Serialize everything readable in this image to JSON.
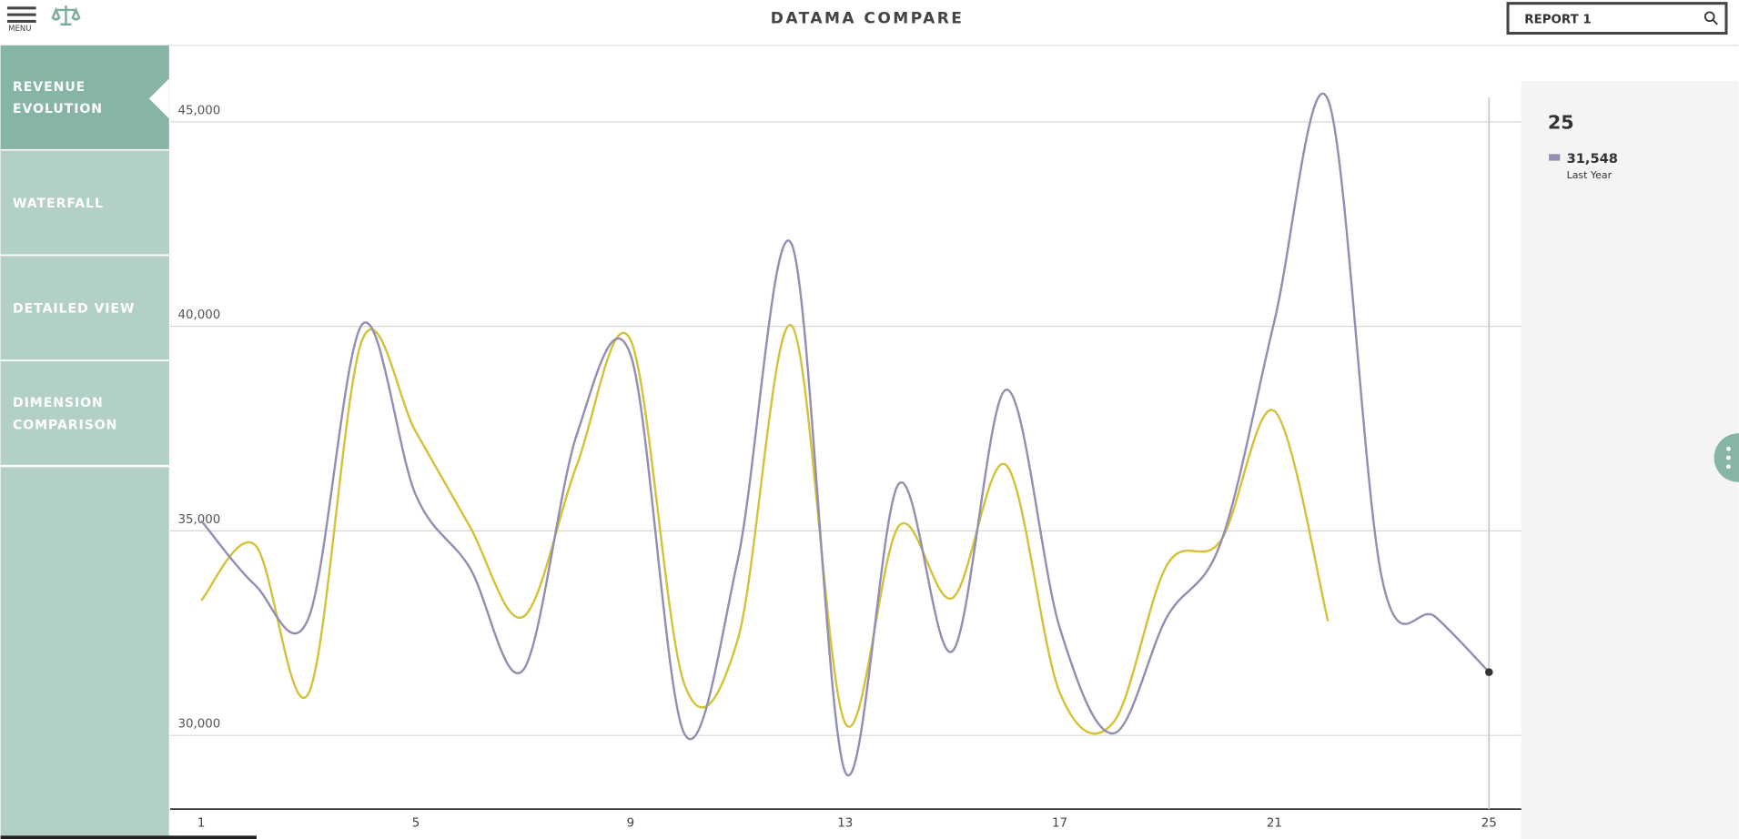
{
  "header": {
    "menu": "MENU",
    "title": "DATAMA COMPARE",
    "search": "REPORT 1"
  },
  "nav": [
    {
      "lines": [
        "REVENUE",
        "EVOLUTION"
      ]
    },
    {
      "lines": [
        "WATERFALL"
      ]
    },
    {
      "lines": [
        "DETAILED VIEW"
      ]
    },
    {
      "lines": [
        "DIMENSION",
        "COMPARISON"
      ]
    }
  ],
  "tooltip": {
    "title": "25",
    "value": "31,548",
    "series": "Last Year"
  },
  "chart_data": {
    "type": "line",
    "x": [
      1,
      2,
      3,
      4,
      5,
      6,
      7,
      8,
      9,
      10,
      11,
      12,
      13,
      14,
      15,
      16,
      17,
      18,
      19,
      20,
      21,
      22,
      23,
      24,
      25
    ],
    "series": [
      {
        "name": "Last Year",
        "color": "#948fb2",
        "values": [
          35250,
          33680,
          32870,
          40050,
          35870,
          34110,
          31600,
          37360,
          39310,
          30050,
          34300,
          42020,
          29110,
          36150,
          32060,
          38450,
          32630,
          30050,
          32900,
          34710,
          40130,
          45540,
          33870,
          32900,
          31548
        ]
      },
      {
        "color": "#d4c23a",
        "values": [
          33300,
          34660,
          31030,
          39670,
          37420,
          35120,
          32900,
          36610,
          39670,
          31270,
          32350,
          40020,
          30300,
          35120,
          33360,
          36610,
          31050,
          30320,
          34170,
          34760,
          37930,
          32790,
          null,
          null,
          null
        ]
      }
    ],
    "xlim": [
      0.42,
      25.6
    ],
    "xticks": [
      1,
      5,
      9,
      13,
      17,
      21,
      25
    ],
    "ylim": [
      28200,
      46000
    ],
    "yticks": [
      {
        "value": 30000,
        "label": "30,000"
      },
      {
        "value": 35000,
        "label": "35,000"
      },
      {
        "value": 40000,
        "label": "40,000"
      },
      {
        "value": 45000,
        "label": "45,000"
      }
    ],
    "grid": true
  }
}
